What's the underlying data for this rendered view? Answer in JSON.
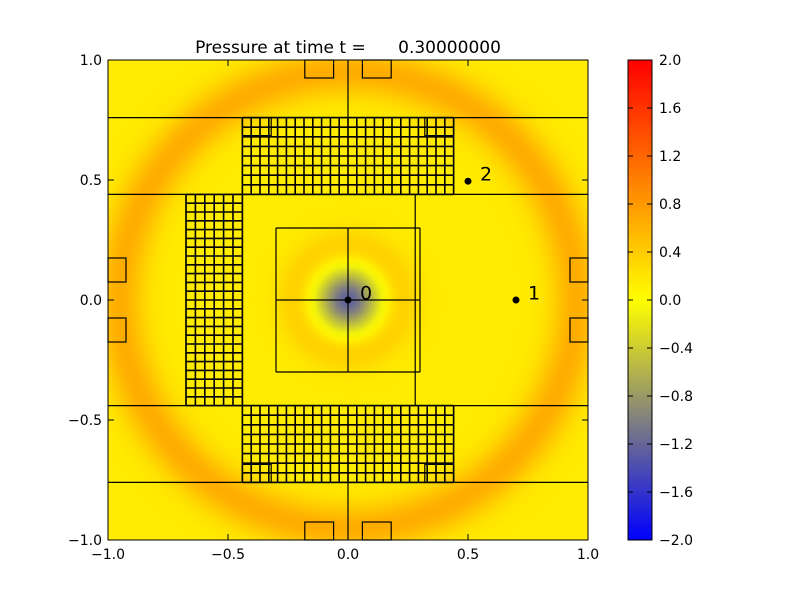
{
  "chart_data": {
    "type": "heatmap",
    "title": "Pressure at time t =      0.30000000",
    "xlabel": "",
    "ylabel": "",
    "xlim": [
      -1.0,
      1.0
    ],
    "ylim": [
      -1.0,
      1.0
    ],
    "x_ticks": [
      {
        "value": -1.0,
        "label": "−1.0"
      },
      {
        "value": -0.5,
        "label": "−0.5"
      },
      {
        "value": 0.0,
        "label": "0.0"
      },
      {
        "value": 0.5,
        "label": "0.5"
      },
      {
        "value": 1.0,
        "label": "1.0"
      }
    ],
    "y_ticks": [
      {
        "value": -1.0,
        "label": "−1.0"
      },
      {
        "value": -0.5,
        "label": "−0.5"
      },
      {
        "value": 0.0,
        "label": "0.0"
      },
      {
        "value": 0.5,
        "label": "0.5"
      },
      {
        "value": 1.0,
        "label": "1.0"
      }
    ],
    "field": {
      "description": "Radial pressure wave centred at origin",
      "center": [
        0.0,
        0.0
      ],
      "core_minimum": -1.4,
      "core_radius": 0.12,
      "wave_peak_radius": 0.95,
      "wave_peak_value": 0.65,
      "background_value": 0.15
    },
    "colorbar": {
      "vmin": -2.0,
      "vmax": 2.0,
      "colors": [
        "#0000ff",
        "#ffff00",
        "#ff0000"
      ],
      "ticks": [
        {
          "value": 2.0,
          "label": "2.0"
        },
        {
          "value": 1.6,
          "label": "1.6"
        },
        {
          "value": 1.2,
          "label": "1.2"
        },
        {
          "value": 0.8,
          "label": "0.8"
        },
        {
          "value": 0.4,
          "label": "0.4"
        },
        {
          "value": 0.0,
          "label": "0.0"
        },
        {
          "value": -0.4,
          "label": "−0.4"
        },
        {
          "value": -0.8,
          "label": "−0.8"
        },
        {
          "value": -1.2,
          "label": "−1.2"
        },
        {
          "value": -1.6,
          "label": "−1.6"
        },
        {
          "value": -2.0,
          "label": "−2.0"
        }
      ]
    },
    "gauges": [
      {
        "label": "0",
        "x": 0.0,
        "y": 0.0
      },
      {
        "label": "1",
        "x": 0.7,
        "y": 0.0
      },
      {
        "label": "2",
        "x": 0.5,
        "y": 0.495
      }
    ],
    "patch_lines": [
      [
        -1.0,
        0.76,
        1.0,
        0.76
      ],
      [
        -1.0,
        -0.76,
        1.0,
        -0.76
      ],
      [
        -1.0,
        0.44,
        1.0,
        0.44
      ],
      [
        -1.0,
        -0.44,
        1.0,
        -0.44
      ],
      [
        0.0,
        1.0,
        0.0,
        0.76
      ],
      [
        0.0,
        -0.76,
        0.0,
        -1.0
      ],
      [
        -0.44,
        0.76,
        -0.44,
        0.44
      ],
      [
        0.44,
        0.76,
        0.44,
        0.44
      ],
      [
        -0.44,
        -0.44,
        -0.44,
        -0.76
      ],
      [
        0.44,
        -0.44,
        0.44,
        -0.76
      ],
      [
        -0.675,
        0.44,
        -0.675,
        -0.44
      ],
      [
        -0.44,
        0.44,
        -0.44,
        -0.44
      ],
      [
        0.28,
        0.44,
        0.28,
        -0.44
      ],
      [
        -0.3,
        0.3,
        0.3,
        0.3
      ],
      [
        -0.3,
        -0.3,
        0.3,
        -0.3
      ],
      [
        -0.3,
        0.3,
        -0.3,
        -0.3
      ],
      [
        0.3,
        0.3,
        0.3,
        -0.3
      ],
      [
        0.0,
        0.3,
        0.0,
        -0.3
      ],
      [
        -0.3,
        0.0,
        0.3,
        0.0
      ]
    ],
    "small_boxes": [
      [
        -0.18,
        0.925,
        -0.06,
        1.0
      ],
      [
        0.06,
        0.925,
        0.18,
        1.0
      ],
      [
        -0.18,
        -1.0,
        -0.06,
        -0.925
      ],
      [
        0.06,
        -1.0,
        0.18,
        -0.925
      ],
      [
        -0.44,
        0.685,
        -0.32,
        0.76
      ],
      [
        0.32,
        0.685,
        0.44,
        0.76
      ],
      [
        -0.44,
        -0.76,
        -0.32,
        -0.685
      ],
      [
        0.32,
        -0.76,
        0.44,
        -0.685
      ],
      [
        -1.0,
        0.075,
        -0.925,
        0.175
      ],
      [
        -1.0,
        -0.175,
        -0.925,
        -0.075
      ],
      [
        0.925,
        0.075,
        1.0,
        0.175
      ],
      [
        0.925,
        -0.175,
        1.0,
        -0.075
      ]
    ],
    "fine_grid_regions": [
      {
        "x0": -0.44,
        "y0": 0.44,
        "x1": 0.44,
        "y1": 0.76,
        "nx": 24,
        "ny": 8
      },
      {
        "x0": -0.44,
        "y0": -0.76,
        "x1": 0.44,
        "y1": -0.44,
        "nx": 24,
        "ny": 8
      },
      {
        "x0": -0.675,
        "y0": -0.44,
        "x1": -0.44,
        "y1": 0.44,
        "nx": 6,
        "ny": 24
      }
    ]
  }
}
